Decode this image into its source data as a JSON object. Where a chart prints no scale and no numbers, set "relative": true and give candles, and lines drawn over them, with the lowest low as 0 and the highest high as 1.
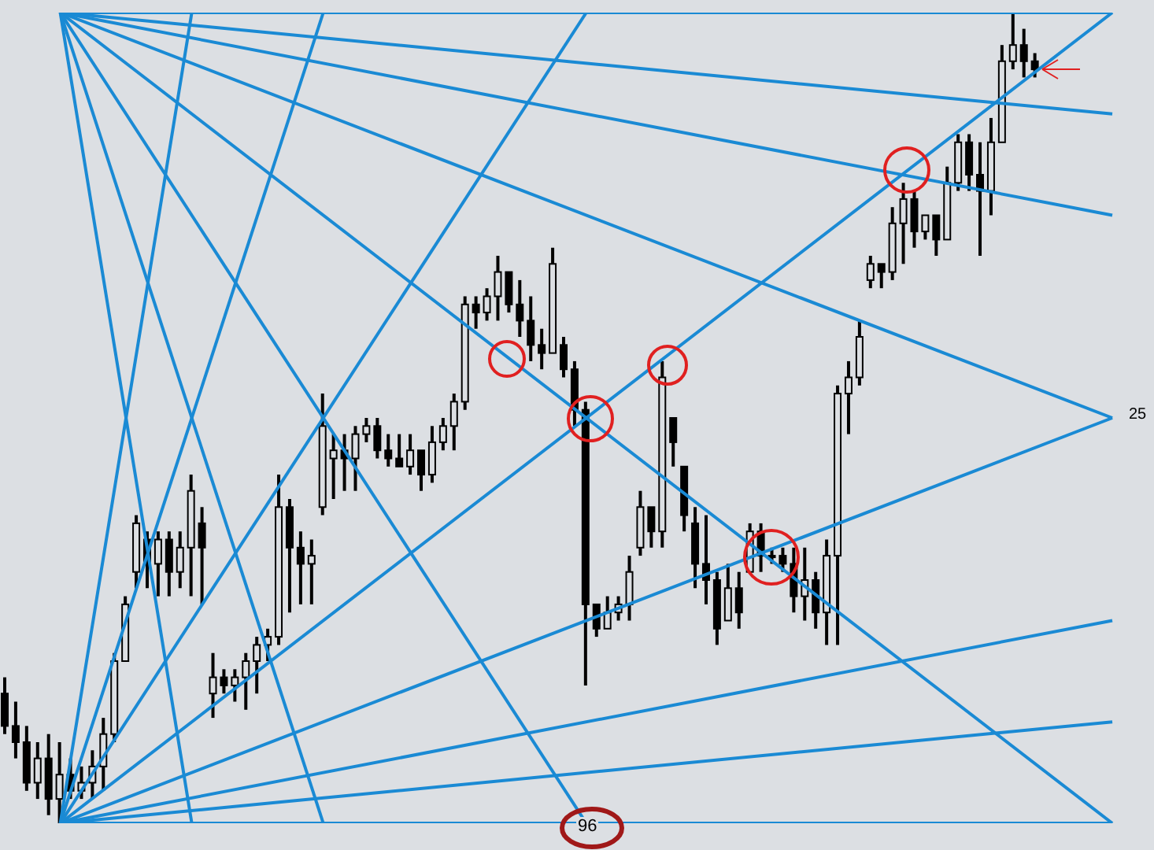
{
  "chart_data": {
    "type": "candlestick",
    "relative": true,
    "color": "#000000",
    "grid": false,
    "legend": false,
    "categories": [
      null,
      null,
      null,
      null,
      null,
      null,
      null,
      null,
      null,
      null,
      null,
      null,
      null,
      null,
      null,
      null,
      null,
      null,
      null,
      null,
      null,
      null,
      null,
      null,
      null,
      null,
      null,
      null,
      null,
      null,
      null,
      null,
      null,
      null,
      null,
      null,
      null,
      null,
      null,
      null,
      null,
      null,
      null,
      null,
      null,
      null,
      null,
      null,
      null,
      null,
      null,
      null,
      null,
      null,
      null,
      null,
      null,
      null,
      null,
      null,
      null,
      null,
      null,
      null,
      null,
      null,
      null,
      null,
      null,
      null,
      null,
      null,
      null,
      null,
      null,
      null,
      null,
      null,
      null,
      null,
      null,
      null,
      null,
      null,
      null,
      null,
      null,
      null,
      null,
      null,
      null,
      null,
      null,
      null,
      null,
      null,
      null,
      null,
      null,
      null,
      null,
      null
    ],
    "ohlc": [
      [
        0.16,
        0.18,
        0.11,
        0.12
      ],
      [
        0.12,
        0.15,
        0.08,
        0.1
      ],
      [
        0.1,
        0.12,
        0.04,
        0.05
      ],
      [
        0.05,
        0.1,
        0.03,
        0.08
      ],
      [
        0.08,
        0.11,
        0.01,
        0.03
      ],
      [
        0.03,
        0.1,
        0,
        0.06
      ],
      [
        0.06,
        0.08,
        0.03,
        0.04
      ],
      [
        0.04,
        0.07,
        0.03,
        0.05
      ],
      [
        0.05,
        0.09,
        0.03,
        0.07
      ],
      [
        0.07,
        0.13,
        0.04,
        0.11
      ],
      [
        0.11,
        0.21,
        0.1,
        0.2
      ],
      [
        0.2,
        0.28,
        0.2,
        0.27
      ],
      [
        0.31,
        0.38,
        0.29,
        0.37
      ],
      [
        0.35,
        0.36,
        0.29,
        0.32
      ],
      [
        0.32,
        0.36,
        0.28,
        0.35
      ],
      [
        0.35,
        0.36,
        0.28,
        0.31
      ],
      [
        0.31,
        0.36,
        0.29,
        0.34
      ],
      [
        0.34,
        0.43,
        0.28,
        0.41
      ],
      [
        0.37,
        0.39,
        0.27,
        0.34
      ],
      [
        0.16,
        0.21,
        0.13,
        0.18
      ],
      [
        0.18,
        0.19,
        0.16,
        0.17
      ],
      [
        0.17,
        0.19,
        0.15,
        0.18
      ],
      [
        0.18,
        0.21,
        0.14,
        0.2
      ],
      [
        0.2,
        0.23,
        0.16,
        0.22
      ],
      [
        0.22,
        0.24,
        0.2,
        0.23
      ],
      [
        0.23,
        0.43,
        0.22,
        0.39
      ],
      [
        0.39,
        0.4,
        0.26,
        0.34
      ],
      [
        0.34,
        0.36,
        0.27,
        0.32
      ],
      [
        0.32,
        0.35,
        0.27,
        0.33
      ],
      [
        0.39,
        0.53,
        0.38,
        0.49
      ],
      [
        0.45,
        0.48,
        0.4,
        0.46
      ],
      [
        0.46,
        0.48,
        0.41,
        0.45
      ],
      [
        0.45,
        0.49,
        0.41,
        0.48
      ],
      [
        0.48,
        0.5,
        0.47,
        0.49
      ],
      [
        0.49,
        0.5,
        0.45,
        0.46
      ],
      [
        0.46,
        0.48,
        0.44,
        0.45
      ],
      [
        0.45,
        0.48,
        0.44,
        0.44
      ],
      [
        0.44,
        0.48,
        0.43,
        0.46
      ],
      [
        0.46,
        0.46,
        0.41,
        0.43
      ],
      [
        0.43,
        0.49,
        0.42,
        0.47
      ],
      [
        0.47,
        0.5,
        0.46,
        0.49
      ],
      [
        0.49,
        0.53,
        0.46,
        0.52
      ],
      [
        0.52,
        0.65,
        0.51,
        0.64
      ],
      [
        0.64,
        0.65,
        0.61,
        0.63
      ],
      [
        0.63,
        0.66,
        0.62,
        0.65
      ],
      [
        0.65,
        0.7,
        0.62,
        0.68
      ],
      [
        0.68,
        0.68,
        0.63,
        0.64
      ],
      [
        0.64,
        0.67,
        0.6,
        0.62
      ],
      [
        0.62,
        0.65,
        0.57,
        0.59
      ],
      [
        0.59,
        0.61,
        0.56,
        0.58
      ],
      [
        0.58,
        0.71,
        0.58,
        0.69
      ],
      [
        0.59,
        0.6,
        0.55,
        0.56
      ],
      [
        0.56,
        0.57,
        0.49,
        0.51
      ],
      [
        0.51,
        0.52,
        0.17,
        0.27
      ],
      [
        0.27,
        0.27,
        0.23,
        0.24
      ],
      [
        0.24,
        0.28,
        0.24,
        0.26
      ],
      [
        0.26,
        0.28,
        0.25,
        0.27
      ],
      [
        0.27,
        0.33,
        0.25,
        0.31
      ],
      [
        0.34,
        0.41,
        0.33,
        0.39
      ],
      [
        0.39,
        0.39,
        0.34,
        0.36
      ],
      [
        0.36,
        0.57,
        0.34,
        0.55
      ],
      [
        0.5,
        0.5,
        0.44,
        0.47
      ],
      [
        0.44,
        0.44,
        0.36,
        0.38
      ],
      [
        0.37,
        0.39,
        0.29,
        0.32
      ],
      [
        0.32,
        0.38,
        0.27,
        0.3
      ],
      [
        0.3,
        0.31,
        0.22,
        0.24
      ],
      [
        0.25,
        0.32,
        0.25,
        0.29
      ],
      [
        0.29,
        0.31,
        0.24,
        0.26
      ],
      [
        0.31,
        0.37,
        0.31,
        0.36
      ],
      [
        0.36,
        0.37,
        0.31,
        0.33
      ],
      [
        0.33,
        0.34,
        0.32,
        0.33
      ],
      [
        0.33,
        0.34,
        0.31,
        0.32
      ],
      [
        0.32,
        0.34,
        0.26,
        0.28
      ],
      [
        0.28,
        0.34,
        0.25,
        0.3
      ],
      [
        0.3,
        0.31,
        0.24,
        0.26
      ],
      [
        0.26,
        0.35,
        0.22,
        0.33
      ],
      [
        0.33,
        0.54,
        0.22,
        0.53
      ],
      [
        0.53,
        0.57,
        0.48,
        0.55
      ],
      [
        0.55,
        0.62,
        0.54,
        0.6
      ],
      [
        0.67,
        0.7,
        0.66,
        0.69
      ],
      [
        0.69,
        0.69,
        0.66,
        0.68
      ],
      [
        0.68,
        0.76,
        0.67,
        0.74
      ],
      [
        0.74,
        0.79,
        0.69,
        0.77
      ],
      [
        0.77,
        0.78,
        0.71,
        0.73
      ],
      [
        0.73,
        0.75,
        0.72,
        0.75
      ],
      [
        0.75,
        0.75,
        0.7,
        0.72
      ],
      [
        0.72,
        0.81,
        0.72,
        0.79
      ],
      [
        0.79,
        0.85,
        0.78,
        0.84
      ],
      [
        0.84,
        0.85,
        0.78,
        0.8
      ],
      [
        0.8,
        0.84,
        0.7,
        0.78
      ],
      [
        0.78,
        0.87,
        0.75,
        0.84
      ],
      [
        0.84,
        0.96,
        0.84,
        0.94
      ],
      [
        0.94,
        1,
        0.93,
        0.96
      ],
      [
        0.96,
        0.98,
        0.92,
        0.94
      ],
      [
        0.94,
        0.95,
        0.92,
        0.93
      ],
      null,
      null,
      null,
      null,
      null,
      null,
      null
    ],
    "series": [
      {
        "type": "line",
        "color": "#1a8ad4",
        "values": [
          null,
          null,
          null,
          null,
          null,
          0,
          null,
          null,
          null,
          null,
          null,
          null,
          null,
          null,
          null,
          null,
          null,
          null,
          null,
          null,
          null,
          null,
          null,
          null,
          null,
          null,
          null,
          null,
          null,
          null,
          null,
          null,
          null,
          null,
          null,
          null,
          null,
          null,
          null,
          null,
          null,
          null,
          null,
          null,
          null,
          null,
          null,
          null,
          null,
          null,
          null,
          null,
          null,
          null,
          null,
          null,
          null,
          null,
          null,
          null,
          null,
          null,
          null,
          null,
          null,
          null,
          null,
          null,
          null,
          null,
          null,
          null,
          null,
          null,
          null,
          null,
          null,
          null,
          null,
          null,
          null,
          null,
          null,
          null,
          null,
          null,
          null,
          null,
          null,
          null,
          null,
          null,
          null,
          null,
          null,
          null,
          null,
          null,
          null,
          null,
          null,
          1
        ]
      },
      {
        "type": "line",
        "color": "#1a8ad4",
        "values": [
          null,
          null,
          null,
          null,
          null,
          0,
          null,
          null,
          null,
          null,
          null,
          null,
          null,
          null,
          null,
          null,
          null,
          null,
          null,
          null,
          null,
          null,
          null,
          null,
          null,
          null,
          null,
          null,
          null,
          null,
          null,
          null,
          null,
          null,
          null,
          null,
          null,
          null,
          null,
          null,
          null,
          null,
          null,
          null,
          null,
          null,
          null,
          null,
          null,
          null,
          null,
          null,
          null,
          null,
          null,
          null,
          null,
          null,
          null,
          null,
          null,
          null,
          null,
          null,
          null,
          null,
          null,
          null,
          null,
          null,
          null,
          null,
          null,
          null,
          null,
          null,
          null,
          null,
          null,
          null,
          null,
          null,
          null,
          null,
          null,
          null,
          null,
          null,
          null,
          null,
          null,
          null,
          null,
          null,
          null,
          null,
          null,
          null,
          null,
          null,
          null,
          0.5
        ]
      },
      {
        "type": "line",
        "color": "#1a8ad4",
        "values": [
          null,
          null,
          null,
          null,
          null,
          0,
          null,
          null,
          null,
          null,
          null,
          null,
          null,
          null,
          null,
          null,
          null,
          null,
          null,
          null,
          null,
          null,
          null,
          null,
          null,
          null,
          null,
          null,
          null,
          null,
          null,
          null,
          null,
          null,
          null,
          null,
          null,
          null,
          null,
          null,
          null,
          null,
          null,
          null,
          null,
          null,
          null,
          null,
          null,
          null,
          null,
          null,
          null,
          null,
          null,
          null,
          null,
          null,
          null,
          null,
          null,
          null,
          null,
          null,
          null,
          null,
          null,
          null,
          null,
          null,
          null,
          null,
          null,
          null,
          null,
          null,
          null,
          null,
          null,
          null,
          null,
          null,
          null,
          null,
          null,
          null,
          null,
          null,
          null,
          null,
          null,
          null,
          null,
          null,
          null,
          null,
          null,
          null,
          null,
          null,
          null,
          0.25
        ]
      },
      {
        "type": "line",
        "color": "#1a8ad4",
        "values": [
          null,
          null,
          null,
          null,
          null,
          0,
          null,
          null,
          null,
          null,
          null,
          null,
          null,
          null,
          null,
          null,
          null,
          null,
          null,
          null,
          null,
          null,
          null,
          null,
          null,
          null,
          null,
          null,
          null,
          null,
          null,
          null,
          null,
          null,
          null,
          null,
          null,
          null,
          null,
          null,
          null,
          null,
          null,
          null,
          null,
          null,
          null,
          null,
          null,
          null,
          null,
          null,
          null,
          null,
          null,
          null,
          null,
          null,
          null,
          null,
          null,
          null,
          null,
          null,
          null,
          null,
          null,
          null,
          null,
          null,
          null,
          null,
          null,
          null,
          null,
          null,
          null,
          null,
          null,
          null,
          null,
          null,
          null,
          null,
          null,
          null,
          null,
          null,
          null,
          null,
          null,
          null,
          null,
          null,
          null,
          null,
          null,
          null,
          null,
          null,
          null,
          0.125
        ]
      },
      {
        "type": "line",
        "color": "#1a8ad4",
        "values": [
          null,
          null,
          null,
          null,
          null,
          0,
          null,
          null,
          null,
          null,
          null,
          null,
          null,
          null,
          null,
          null,
          null,
          1,
          null,
          null,
          null,
          null,
          null,
          null,
          null,
          null,
          null,
          null,
          null,
          null,
          null,
          null,
          null,
          null,
          null,
          null,
          null,
          null,
          null,
          null,
          null,
          null,
          null,
          null,
          null,
          null,
          null,
          null,
          null,
          null,
          null,
          null,
          null,
          null,
          null,
          null,
          null,
          null,
          null,
          null,
          null,
          null,
          null,
          null,
          null,
          null,
          null,
          null,
          null,
          null,
          null,
          null,
          null,
          null,
          null,
          null,
          null,
          null,
          null,
          null,
          null,
          null,
          null,
          null,
          null,
          null,
          null,
          null,
          null,
          null,
          null,
          null,
          null,
          null,
          null,
          null,
          null,
          null,
          null,
          null,
          null,
          null
        ]
      },
      {
        "type": "line",
        "color": "#1a8ad4",
        "values": [
          null,
          null,
          null,
          null,
          null,
          0,
          null,
          null,
          null,
          null,
          null,
          null,
          null,
          null,
          null,
          null,
          null,
          null,
          null,
          null,
          null,
          null,
          null,
          null,
          null,
          null,
          null,
          null,
          null,
          1,
          null,
          null,
          null,
          null,
          null,
          null,
          null,
          null,
          null,
          null,
          null,
          null,
          null,
          null,
          null,
          null,
          null,
          null,
          null,
          null,
          null,
          null,
          null,
          null,
          null,
          null,
          null,
          null,
          null,
          null,
          null,
          null,
          null,
          null,
          null,
          null,
          null,
          null,
          null,
          null,
          null,
          null,
          null,
          null,
          null,
          null,
          null,
          null,
          null,
          null,
          null,
          null,
          null,
          null,
          null,
          null,
          null,
          null,
          null,
          null,
          null,
          null,
          null,
          null,
          null,
          null,
          null,
          null,
          null,
          null,
          null,
          null
        ]
      },
      {
        "type": "line",
        "color": "#1a8ad4",
        "values": [
          null,
          null,
          null,
          null,
          null,
          0,
          null,
          null,
          null,
          null,
          null,
          null,
          null,
          null,
          null,
          null,
          null,
          null,
          null,
          null,
          null,
          null,
          null,
          null,
          null,
          null,
          null,
          null,
          null,
          null,
          null,
          null,
          null,
          null,
          null,
          null,
          null,
          null,
          null,
          null,
          null,
          null,
          null,
          null,
          null,
          null,
          null,
          null,
          null,
          null,
          null,
          null,
          null,
          1,
          null,
          null,
          null,
          null,
          null,
          null,
          null,
          null,
          null,
          null,
          null,
          null,
          null,
          null,
          null,
          null,
          null,
          null,
          null,
          null,
          null,
          null,
          null,
          null,
          null,
          null,
          null,
          null,
          null,
          null,
          null,
          null,
          null,
          null,
          null,
          null,
          null,
          null,
          null,
          null,
          null,
          null,
          null,
          null,
          null,
          null,
          null,
          null
        ]
      },
      {
        "type": "line",
        "color": "#1a8ad4",
        "values": [
          null,
          null,
          null,
          null,
          null,
          1,
          null,
          null,
          null,
          null,
          null,
          null,
          null,
          null,
          null,
          null,
          null,
          null,
          null,
          null,
          null,
          null,
          null,
          null,
          null,
          null,
          null,
          null,
          null,
          null,
          null,
          null,
          null,
          null,
          null,
          null,
          null,
          null,
          null,
          null,
          null,
          null,
          null,
          null,
          null,
          null,
          null,
          null,
          null,
          null,
          null,
          null,
          null,
          null,
          null,
          null,
          null,
          null,
          null,
          null,
          null,
          null,
          null,
          null,
          null,
          null,
          null,
          null,
          null,
          null,
          null,
          null,
          null,
          null,
          null,
          null,
          null,
          null,
          null,
          null,
          null,
          null,
          null,
          null,
          null,
          null,
          null,
          null,
          null,
          null,
          null,
          null,
          null,
          null,
          null,
          null,
          null,
          null,
          null,
          null,
          null,
          0
        ]
      },
      {
        "type": "line",
        "color": "#1a8ad4",
        "values": [
          null,
          null,
          null,
          null,
          null,
          1,
          null,
          null,
          null,
          null,
          null,
          null,
          null,
          null,
          null,
          null,
          null,
          null,
          null,
          null,
          null,
          null,
          null,
          null,
          null,
          null,
          null,
          null,
          null,
          null,
          null,
          null,
          null,
          null,
          null,
          null,
          null,
          null,
          null,
          null,
          null,
          null,
          null,
          null,
          null,
          null,
          null,
          null,
          null,
          null,
          null,
          null,
          null,
          null,
          null,
          null,
          null,
          null,
          null,
          null,
          null,
          null,
          null,
          null,
          null,
          null,
          null,
          null,
          null,
          null,
          null,
          null,
          null,
          null,
          null,
          null,
          null,
          null,
          null,
          null,
          null,
          null,
          null,
          null,
          null,
          null,
          null,
          null,
          null,
          null,
          null,
          null,
          null,
          null,
          null,
          null,
          null,
          null,
          null,
          null,
          null,
          0.5
        ]
      },
      {
        "type": "line",
        "color": "#1a8ad4",
        "values": [
          null,
          null,
          null,
          null,
          null,
          1,
          null,
          null,
          null,
          null,
          null,
          null,
          null,
          null,
          null,
          null,
          null,
          null,
          null,
          null,
          null,
          null,
          null,
          null,
          null,
          null,
          null,
          null,
          null,
          null,
          null,
          null,
          null,
          null,
          null,
          null,
          null,
          null,
          null,
          null,
          null,
          null,
          null,
          null,
          null,
          null,
          null,
          null,
          null,
          null,
          null,
          null,
          null,
          null,
          null,
          null,
          null,
          null,
          null,
          null,
          null,
          null,
          null,
          null,
          null,
          null,
          null,
          null,
          null,
          null,
          null,
          null,
          null,
          null,
          null,
          null,
          null,
          null,
          null,
          null,
          null,
          null,
          null,
          null,
          null,
          null,
          null,
          null,
          null,
          null,
          null,
          null,
          null,
          null,
          null,
          null,
          null,
          null,
          null,
          null,
          null,
          0.75
        ]
      },
      {
        "type": "line",
        "color": "#1a8ad4",
        "values": [
          null,
          null,
          null,
          null,
          null,
          1,
          null,
          null,
          null,
          null,
          null,
          null,
          null,
          null,
          null,
          null,
          null,
          null,
          null,
          null,
          null,
          null,
          null,
          null,
          null,
          null,
          null,
          null,
          null,
          null,
          null,
          null,
          null,
          null,
          null,
          null,
          null,
          null,
          null,
          null,
          null,
          null,
          null,
          null,
          null,
          null,
          null,
          null,
          null,
          null,
          null,
          null,
          null,
          null,
          null,
          null,
          null,
          null,
          null,
          null,
          null,
          null,
          null,
          null,
          null,
          null,
          null,
          null,
          null,
          null,
          null,
          null,
          null,
          null,
          null,
          null,
          null,
          null,
          null,
          null,
          null,
          null,
          null,
          null,
          null,
          null,
          null,
          null,
          null,
          null,
          null,
          null,
          null,
          null,
          null,
          null,
          null,
          null,
          null,
          null,
          null,
          0.875
        ]
      },
      {
        "type": "line",
        "color": "#1a8ad4",
        "values": [
          null,
          null,
          null,
          null,
          null,
          1,
          null,
          null,
          null,
          null,
          null,
          null,
          null,
          null,
          null,
          null,
          null,
          0,
          null,
          null,
          null,
          null,
          null,
          null,
          null,
          null,
          null,
          null,
          null,
          null,
          null,
          null,
          null,
          null,
          null,
          null,
          null,
          null,
          null,
          null,
          null,
          null,
          null,
          null,
          null,
          null,
          null,
          null,
          null,
          null,
          null,
          null,
          null,
          null,
          null,
          null,
          null,
          null,
          null,
          null,
          null,
          null,
          null,
          null,
          null,
          null,
          null,
          null,
          null,
          null,
          null,
          null,
          null,
          null,
          null,
          null,
          null,
          null,
          null,
          null,
          null,
          null,
          null,
          null,
          null,
          null,
          null,
          null,
          null,
          null,
          null,
          null,
          null,
          null,
          null,
          null,
          null,
          null,
          null,
          null,
          null,
          null
        ]
      },
      {
        "type": "line",
        "color": "#1a8ad4",
        "values": [
          null,
          null,
          null,
          null,
          null,
          1,
          null,
          null,
          null,
          null,
          null,
          null,
          null,
          null,
          null,
          null,
          null,
          null,
          null,
          null,
          null,
          null,
          null,
          null,
          null,
          null,
          null,
          null,
          null,
          0,
          null,
          null,
          null,
          null,
          null,
          null,
          null,
          null,
          null,
          null,
          null,
          null,
          null,
          null,
          null,
          null,
          null,
          null,
          null,
          null,
          null,
          null,
          null,
          null,
          null,
          null,
          null,
          null,
          null,
          null,
          null,
          null,
          null,
          null,
          null,
          null,
          null,
          null,
          null,
          null,
          null,
          null,
          null,
          null,
          null,
          null,
          null,
          null,
          null,
          null,
          null,
          null,
          null,
          null,
          null,
          null,
          null,
          null,
          null,
          null,
          null,
          null,
          null,
          null,
          null,
          null,
          null,
          null,
          null,
          null,
          null,
          null
        ]
      },
      {
        "type": "line",
        "color": "#1a8ad4",
        "values": [
          null,
          null,
          null,
          null,
          null,
          1,
          null,
          null,
          null,
          null,
          null,
          null,
          null,
          null,
          null,
          null,
          null,
          null,
          null,
          null,
          null,
          null,
          null,
          null,
          null,
          null,
          null,
          null,
          null,
          null,
          null,
          null,
          null,
          null,
          null,
          null,
          null,
          null,
          null,
          null,
          null,
          null,
          null,
          null,
          null,
          null,
          null,
          null,
          null,
          null,
          null,
          null,
          null,
          0,
          null,
          null,
          null,
          null,
          null,
          null,
          null,
          null,
          null,
          null,
          null,
          null,
          null,
          null,
          null,
          null,
          null,
          null,
          null,
          null,
          null,
          null,
          null,
          null,
          null,
          null,
          null,
          null,
          null,
          null,
          null,
          null,
          null,
          null,
          null,
          null,
          null,
          null,
          null,
          null,
          null,
          null,
          null,
          null,
          null,
          null,
          null,
          null
        ]
      },
      {
        "type": "line",
        "color": "#1a8ad4",
        "values": [
          null,
          null,
          null,
          null,
          null,
          1,
          null,
          null,
          null,
          null,
          null,
          null,
          null,
          null,
          null,
          null,
          null,
          null,
          null,
          null,
          null,
          null,
          null,
          null,
          null,
          null,
          null,
          null,
          null,
          null,
          null,
          null,
          null,
          null,
          null,
          null,
          null,
          null,
          null,
          null,
          null,
          null,
          null,
          null,
          null,
          null,
          null,
          null,
          null,
          null,
          null,
          null,
          null,
          null,
          null,
          null,
          null,
          null,
          null,
          null,
          null,
          null,
          null,
          null,
          null,
          null,
          null,
          null,
          null,
          null,
          null,
          null,
          null,
          null,
          null,
          null,
          null,
          null,
          null,
          null,
          null,
          null,
          null,
          null,
          null,
          null,
          null,
          null,
          null,
          null,
          null,
          null,
          null,
          null,
          null,
          null,
          null,
          null,
          null,
          null,
          null,
          1
        ]
      },
      {
        "type": "line",
        "color": "#1a8ad4",
        "values": [
          null,
          null,
          null,
          null,
          null,
          0,
          null,
          null,
          null,
          null,
          null,
          null,
          null,
          null,
          null,
          null,
          null,
          null,
          null,
          null,
          null,
          null,
          null,
          null,
          null,
          null,
          null,
          null,
          null,
          null,
          null,
          null,
          null,
          null,
          null,
          null,
          null,
          null,
          null,
          null,
          null,
          null,
          null,
          null,
          null,
          null,
          null,
          null,
          null,
          null,
          null,
          null,
          null,
          null,
          null,
          null,
          null,
          null,
          null,
          null,
          null,
          null,
          null,
          null,
          null,
          null,
          null,
          null,
          null,
          null,
          null,
          null,
          null,
          null,
          null,
          null,
          null,
          null,
          null,
          null,
          null,
          null,
          null,
          null,
          null,
          null,
          null,
          null,
          null,
          null,
          null,
          null,
          null,
          null,
          null,
          null,
          null,
          null,
          null,
          null,
          null,
          0
        ]
      }
    ],
    "annotations": [
      "96",
      "25"
    ]
  }
}
